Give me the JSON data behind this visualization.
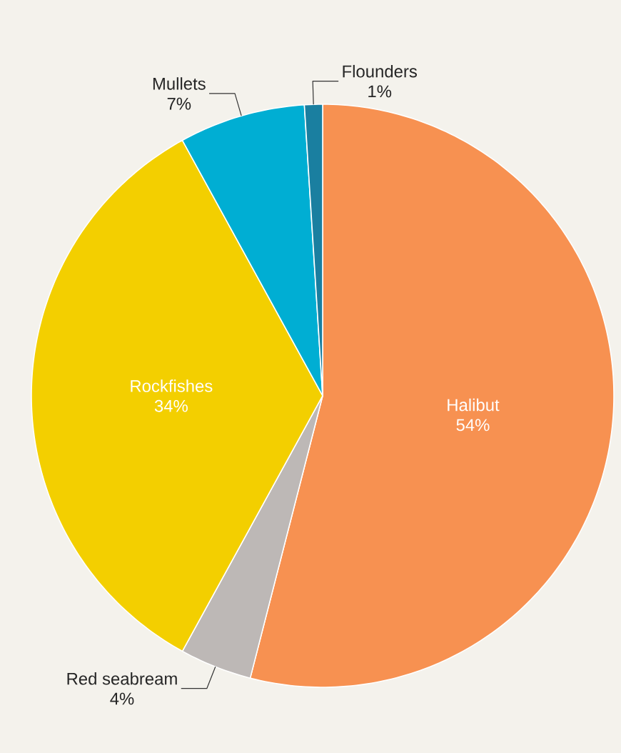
{
  "chart_data": {
    "type": "pie",
    "categories": [
      "Halibut",
      "Red seabream",
      "Rockfishes",
      "Mullets",
      "Flounders"
    ],
    "values": [
      54,
      4,
      34,
      7,
      1
    ],
    "value_labels": [
      "54%",
      "4%",
      "34%",
      "7%",
      "1%"
    ],
    "colors": [
      "#f79151",
      "#bdb8b6",
      "#f3cf00",
      "#00aed3",
      "#1a7fa0"
    ],
    "legend": false
  }
}
